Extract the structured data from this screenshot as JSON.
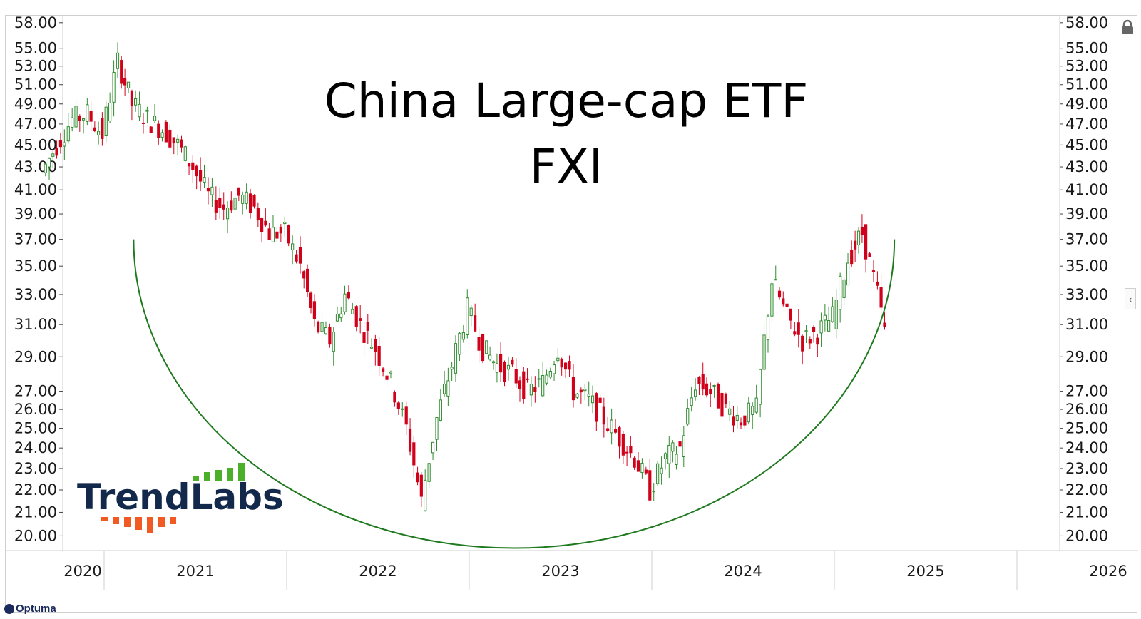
{
  "chart_data": {
    "type": "candlestick",
    "title": "China Large-cap ETF",
    "subtitle": "FXI",
    "scale": "log",
    "ylim": [
      19.4,
      58.5
    ],
    "y_ticks": [
      "58.00",
      "55.00",
      "53.00",
      "51.00",
      "49.00",
      "47.00",
      "45.00",
      "43.00",
      "41.00",
      "39.00",
      "37.00",
      "35.00",
      "33.00",
      "31.00",
      "29.00",
      "27.00",
      "26.00",
      "25.00",
      "24.00",
      "23.00",
      "22.00",
      "21.00",
      "20.00"
    ],
    "x_labels": [
      "2020",
      "2021",
      "2022",
      "2023",
      "2024",
      "2025",
      "2026"
    ],
    "series": [
      {
        "values": [
          {
            "x": "2020-09-01",
            "y": 42.5
          },
          {
            "x": "2020-10-01",
            "y": 45.0
          },
          {
            "x": "2020-11-01",
            "y": 47.5
          },
          {
            "x": "2020-12-01",
            "y": 48.0
          },
          {
            "x": "2021-01-01",
            "y": 46.0
          },
          {
            "x": "2021-02-01",
            "y": 53.5
          },
          {
            "x": "2021-03-01",
            "y": 49.0
          },
          {
            "x": "2021-04-01",
            "y": 47.5
          },
          {
            "x": "2021-05-01",
            "y": 46.5
          },
          {
            "x": "2021-06-01",
            "y": 45.0
          },
          {
            "x": "2021-07-01",
            "y": 43.0
          },
          {
            "x": "2021-08-01",
            "y": 40.5
          },
          {
            "x": "2021-09-01",
            "y": 39.5
          },
          {
            "x": "2021-10-01",
            "y": 40.5
          },
          {
            "x": "2021-11-01",
            "y": 39.5
          },
          {
            "x": "2021-12-01",
            "y": 37.5
          },
          {
            "x": "2022-01-01",
            "y": 37.5
          },
          {
            "x": "2022-02-01",
            "y": 35.0
          },
          {
            "x": "2022-03-01",
            "y": 31.0
          },
          {
            "x": "2022-04-01",
            "y": 30.0
          },
          {
            "x": "2022-05-01",
            "y": 33.0
          },
          {
            "x": "2022-06-01",
            "y": 31.0
          },
          {
            "x": "2022-07-01",
            "y": 29.5
          },
          {
            "x": "2022-08-01",
            "y": 27.5
          },
          {
            "x": "2022-09-01",
            "y": 25.0
          },
          {
            "x": "2022-10-01",
            "y": 21.5
          },
          {
            "x": "2022-11-01",
            "y": 25.5
          },
          {
            "x": "2022-12-01",
            "y": 28.5
          },
          {
            "x": "2023-01-01",
            "y": 32.0
          },
          {
            "x": "2023-02-01",
            "y": 29.5
          },
          {
            "x": "2023-03-01",
            "y": 28.5
          },
          {
            "x": "2023-04-01",
            "y": 28.0
          },
          {
            "x": "2023-05-01",
            "y": 27.0
          },
          {
            "x": "2023-06-01",
            "y": 27.5
          },
          {
            "x": "2023-07-01",
            "y": 29.5
          },
          {
            "x": "2023-08-01",
            "y": 27.0
          },
          {
            "x": "2023-09-01",
            "y": 26.5
          },
          {
            "x": "2023-10-01",
            "y": 25.5
          },
          {
            "x": "2023-11-01",
            "y": 24.5
          },
          {
            "x": "2023-12-01",
            "y": 23.5
          },
          {
            "x": "2024-01-01",
            "y": 22.0
          },
          {
            "x": "2024-02-01",
            "y": 23.5
          },
          {
            "x": "2024-03-01",
            "y": 24.0
          },
          {
            "x": "2024-04-01",
            "y": 27.5
          },
          {
            "x": "2024-05-01",
            "y": 27.0
          },
          {
            "x": "2024-06-01",
            "y": 26.0
          },
          {
            "x": "2024-07-01",
            "y": 25.5
          },
          {
            "x": "2024-08-01",
            "y": 26.0
          },
          {
            "x": "2024-09-01",
            "y": 34.0
          },
          {
            "x": "2024-10-01",
            "y": 31.5
          },
          {
            "x": "2024-11-01",
            "y": 30.0
          },
          {
            "x": "2024-12-01",
            "y": 30.5
          },
          {
            "x": "2025-01-01",
            "y": 31.5
          },
          {
            "x": "2025-02-01",
            "y": 35.5
          },
          {
            "x": "2025-03-01",
            "y": 37.5
          },
          {
            "x": "2025-04-01",
            "y": 33.0
          },
          {
            "x": "2025-04-15",
            "y": 30.5
          }
        ]
      }
    ],
    "annotation": {
      "type": "cup-arc",
      "color": "#1f7a1f",
      "x_start": "2021-03-01",
      "x_end": "2025-05-01",
      "y_ends": 37.0,
      "y_bottom": 19.5
    },
    "up_color": "#2e8b2e",
    "down_color": "#d0021b",
    "grid": false
  },
  "branding": {
    "trendlabs_text": "TrendLabs",
    "trendlabs_color": "#13294b",
    "trendlabs_bar_top_color": "#4caf2a",
    "trendlabs_bar_bottom_color": "#f15a22",
    "optuma_text": "Optuma"
  },
  "icons": {
    "lock": "lock-icon",
    "collapse": "chevron-left-icon"
  }
}
